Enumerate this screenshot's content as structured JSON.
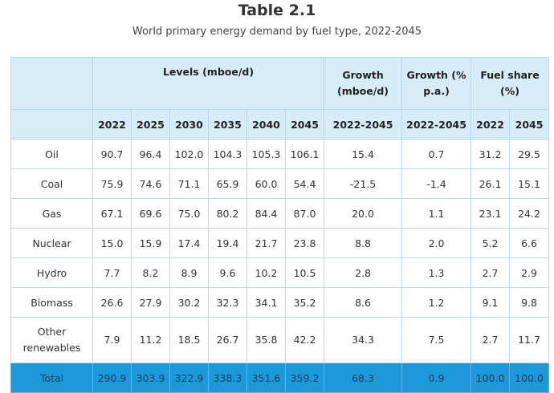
{
  "title": "Table 2.1",
  "subtitle": "World primary energy demand by fuel type, 2022-2045",
  "header": {
    "levels": "Levels (mboe/d)",
    "growth_mboe": "Growth (mboe/d)",
    "growth_pct": "Growth (% p.a.)",
    "fuel_share": "Fuel share (%)",
    "years": [
      "2022",
      "2025",
      "2030",
      "2035",
      "2040",
      "2045"
    ],
    "growth_mboe_period": "2022-2045",
    "growth_pct_period": "2022-2045",
    "share_years": [
      "2022",
      "2045"
    ]
  },
  "rows": [
    {
      "name": "Oil",
      "levels": [
        "90.7",
        "96.4",
        "102.0",
        "104.3",
        "105.3",
        "106.1"
      ],
      "growth_mboe": "15.4",
      "growth_pct": "0.7",
      "share": [
        "31.2",
        "29.5"
      ]
    },
    {
      "name": "Coal",
      "levels": [
        "75.9",
        "74.6",
        "71.1",
        "65.9",
        "60.0",
        "54.4"
      ],
      "growth_mboe": "-21.5",
      "growth_pct": "-1.4",
      "share": [
        "26.1",
        "15.1"
      ]
    },
    {
      "name": "Gas",
      "levels": [
        "67.1",
        "69.6",
        "75.0",
        "80.2",
        "84.4",
        "87.0"
      ],
      "growth_mboe": "20.0",
      "growth_pct": "1.1",
      "share": [
        "23.1",
        "24.2"
      ]
    },
    {
      "name": "Nuclear",
      "levels": [
        "15.0",
        "15.9",
        "17.4",
        "19.4",
        "21.7",
        "23.8"
      ],
      "growth_mboe": "8.8",
      "growth_pct": "2.0",
      "share": [
        "5.2",
        "6.6"
      ]
    },
    {
      "name": "Hydro",
      "levels": [
        "7.7",
        "8.2",
        "8.9",
        "9.6",
        "10.2",
        "10.5"
      ],
      "growth_mboe": "2.8",
      "growth_pct": "1.3",
      "share": [
        "2.7",
        "2.9"
      ]
    },
    {
      "name": "Biomass",
      "levels": [
        "26.6",
        "27.9",
        "30.2",
        "32.3",
        "34.1",
        "35.2"
      ],
      "growth_mboe": "8.6",
      "growth_pct": "1.2",
      "share": [
        "9.1",
        "9.8"
      ]
    },
    {
      "name": "Other renewables",
      "levels": [
        "7.9",
        "11.2",
        "18.5",
        "26.7",
        "35.8",
        "42.2"
      ],
      "growth_mboe": "34.3",
      "growth_pct": "7.5",
      "share": [
        "2.7",
        "11.7"
      ]
    }
  ],
  "total": {
    "name": "Total",
    "levels": [
      "290.9",
      "303.9",
      "322.9",
      "338.3",
      "351.6",
      "359.2"
    ],
    "growth_mboe": "68.3",
    "growth_pct": "0.9",
    "share": [
      "100.0",
      "100.0"
    ]
  },
  "colors": {
    "header_bg": "#d6ecf8",
    "border": "#b8d9ee",
    "total_bg": "#1d98da"
  }
}
